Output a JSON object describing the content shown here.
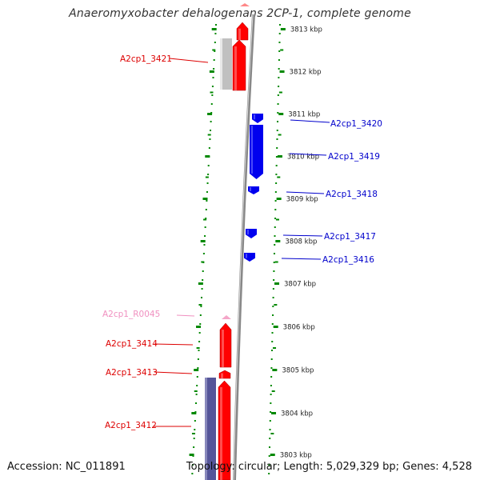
{
  "title": "Anaeromyxobacter dehalogenans 2CP-1, complete genome",
  "footer": {
    "accession": "Accession: NC_011891",
    "topology": "Topology: circular; Length: 5,029,329 bp; Genes: 4,528"
  },
  "colors": {
    "forward_cds": "#ff0000",
    "reverse_cds": "#0000ee",
    "rna": "#f4a6c8",
    "gray_feature": "#c0c0c0",
    "purple_feature": "#555599",
    "ticks": "#008800",
    "backbone": "#888888"
  },
  "ticks": [
    {
      "label": "3813 kbp"
    },
    {
      "label": "3812 kbp"
    },
    {
      "label": "3811 kbp"
    },
    {
      "label": "3810 kbp"
    },
    {
      "label": "3809 kbp"
    },
    {
      "label": "3808 kbp"
    },
    {
      "label": "3807 kbp"
    },
    {
      "label": "3806 kbp"
    },
    {
      "label": "3805 kbp"
    },
    {
      "label": "3804 kbp"
    },
    {
      "label": "3803 kbp"
    }
  ],
  "gene_labels": [
    {
      "name": "A2cp1_3421",
      "side": "left",
      "category": "forward"
    },
    {
      "name": "A2cp1_3420",
      "side": "right",
      "category": "reverse"
    },
    {
      "name": "A2cp1_3419",
      "side": "right",
      "category": "reverse"
    },
    {
      "name": "A2cp1_3418",
      "side": "right",
      "category": "reverse"
    },
    {
      "name": "A2cp1_3417",
      "side": "right",
      "category": "reverse"
    },
    {
      "name": "A2cp1_3416",
      "side": "right",
      "category": "reverse"
    },
    {
      "name": "A2cp1_R0045",
      "side": "left",
      "category": "rna"
    },
    {
      "name": "A2cp1_3414",
      "side": "left",
      "category": "forward"
    },
    {
      "name": "A2cp1_3413",
      "side": "left",
      "category": "forward"
    },
    {
      "name": "A2cp1_3412",
      "side": "left",
      "category": "forward"
    }
  ]
}
